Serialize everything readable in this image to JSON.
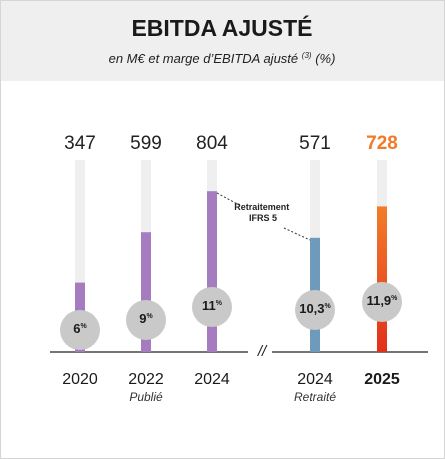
{
  "chart_data": {
    "type": "bar",
    "title": "EBITDA AJUSTÉ",
    "subtitle": "en M€ et marge d’EBITDA ajusté",
    "subtitle_note": "(3)",
    "subtitle_unit": "(%)",
    "categories": [
      "2020",
      "2022",
      "2024",
      "2024",
      "2025"
    ],
    "sub_labels": [
      null,
      "Publié",
      null,
      "Retraité",
      null
    ],
    "values": [
      347,
      599,
      804,
      571,
      728
    ],
    "colors": [
      "#a67cc1",
      "#a67cc1",
      "#a67cc1",
      "#6e9bbb",
      [
        "#f27d2b",
        "#e2301b"
      ]
    ],
    "value_label_colors": [
      "#222222",
      "#222222",
      "#222222",
      "#222222",
      "#f07a28"
    ],
    "bold_index": 4,
    "margins": {
      "values": [
        6,
        9,
        11,
        10.3,
        11.9
      ],
      "value_labels": [
        "6%",
        "9%",
        "11%",
        "10,3%",
        "11,9%"
      ]
    },
    "annotation": [
      "Retraitement",
      "IFRS 5"
    ],
    "break_mark": "//",
    "ylim": [
      0,
      960
    ]
  }
}
